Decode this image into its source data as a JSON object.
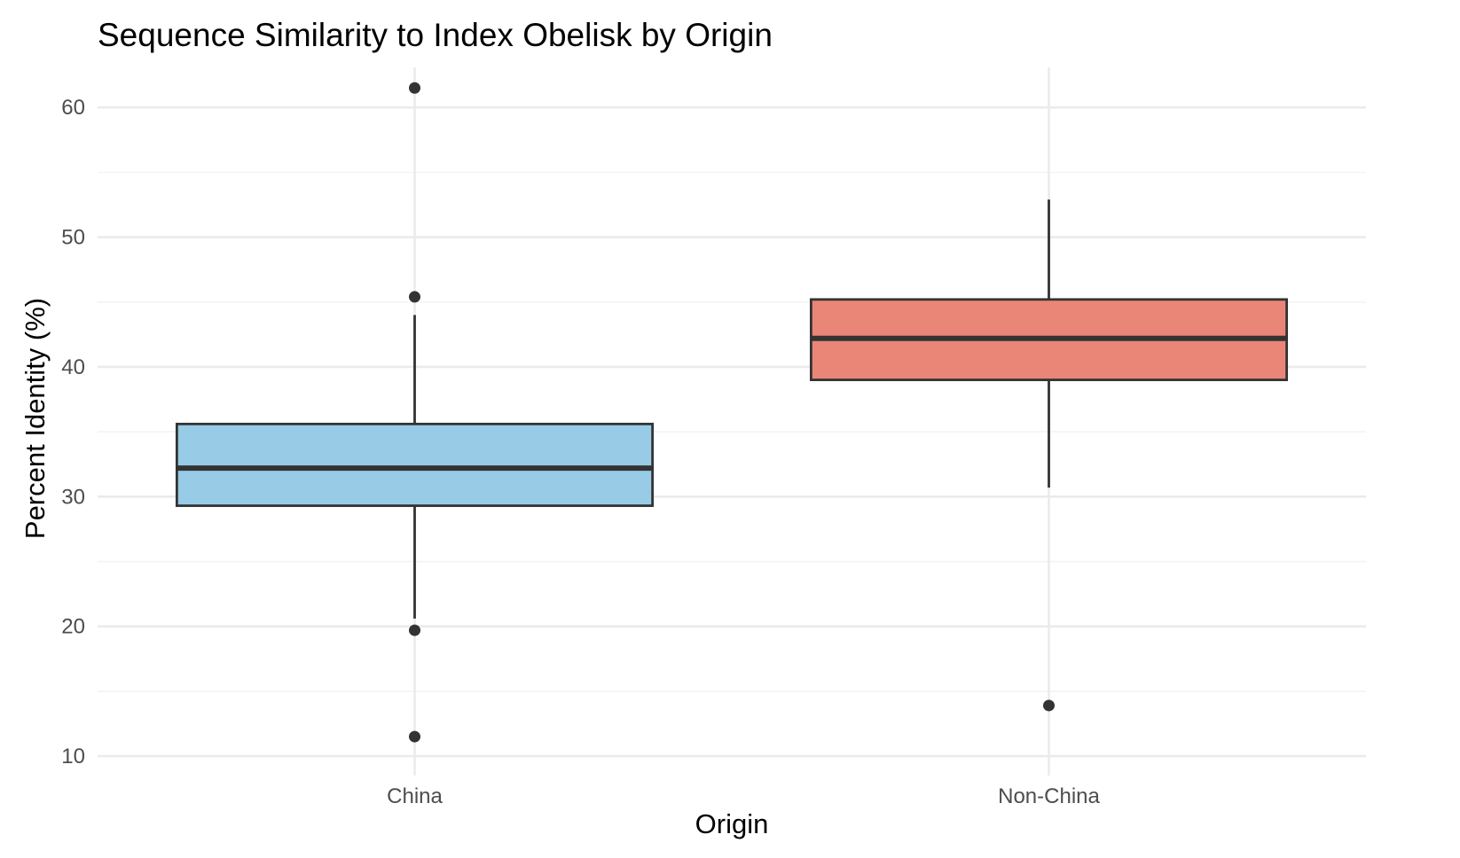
{
  "chart_data": {
    "type": "box",
    "title": "Sequence Similarity to Index Obelisk by Origin",
    "xlabel": "Origin",
    "ylabel": "Percent Identity (%)",
    "ylim": [
      8.5,
      63.5
    ],
    "yticks": [
      10,
      20,
      30,
      40,
      50,
      60
    ],
    "yticks_minor": [
      15,
      25,
      35,
      45,
      55
    ],
    "grid": true,
    "categories": [
      "China",
      "Non-China"
    ],
    "boxes": [
      {
        "category": "China",
        "color": "#97CBE6",
        "whisker_low": 20.6,
        "q1": 29.3,
        "median": 32.2,
        "q3": 35.6,
        "whisker_high": 44.0,
        "outliers": [
          61.5,
          45.4,
          19.7,
          11.5
        ]
      },
      {
        "category": "Non-China",
        "color": "#E98677",
        "whisker_low": 30.7,
        "q1": 39.0,
        "median": 42.2,
        "q3": 45.2,
        "whisker_high": 52.9,
        "outliers": [
          13.9
        ]
      }
    ]
  }
}
